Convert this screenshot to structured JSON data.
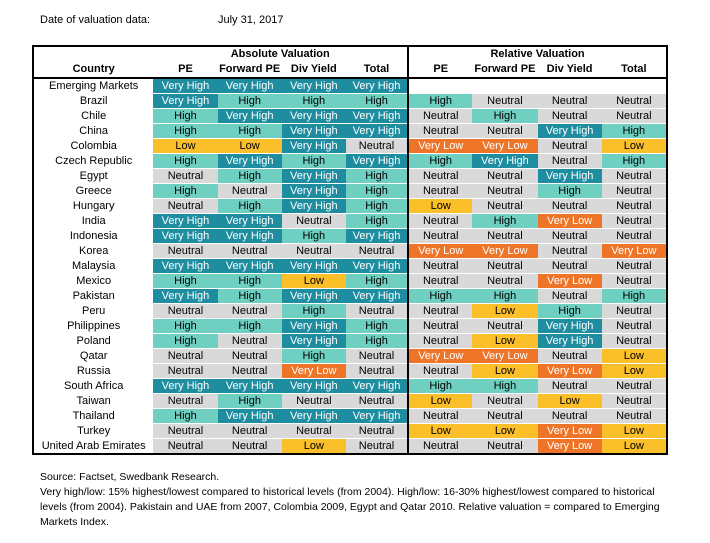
{
  "meta": {
    "label": "Date of valuation data:",
    "value": "July 31, 2017"
  },
  "headers": {
    "abs_group": "Absolute Valuation",
    "rel_group": "Relative Valuation",
    "country": "Country",
    "abs_cols": [
      "PE",
      "Forward PE",
      "Div Yield",
      "Total"
    ],
    "rel_cols": [
      "PE",
      "Forward PE",
      "Div Yield",
      "Total"
    ]
  },
  "rows": [
    {
      "country": "Emerging Markets",
      "abs": [
        "Very High",
        "Very High",
        "Very High",
        "Very High"
      ],
      "rel": [
        "",
        "",
        "",
        ""
      ]
    },
    {
      "country": "Brazil",
      "abs": [
        "Very High",
        "High",
        "High",
        "High"
      ],
      "rel": [
        "High",
        "Neutral",
        "Neutral",
        "Neutral"
      ]
    },
    {
      "country": "Chile",
      "abs": [
        "High",
        "Very High",
        "Very High",
        "Very High"
      ],
      "rel": [
        "Neutral",
        "High",
        "Neutral",
        "Neutral"
      ]
    },
    {
      "country": "China",
      "abs": [
        "High",
        "High",
        "Very High",
        "Very High"
      ],
      "rel": [
        "Neutral",
        "Neutral",
        "Very High",
        "High"
      ]
    },
    {
      "country": "Colombia",
      "abs": [
        "Low",
        "Low",
        "Very High",
        "Neutral"
      ],
      "rel": [
        "Very Low",
        "Very Low",
        "Neutral",
        "Low"
      ]
    },
    {
      "country": "Czech Republic",
      "abs": [
        "High",
        "Very High",
        "High",
        "Very High"
      ],
      "rel": [
        "High",
        "Very High",
        "Neutral",
        "High"
      ]
    },
    {
      "country": "Egypt",
      "abs": [
        "Neutral",
        "High",
        "Very High",
        "High"
      ],
      "rel": [
        "Neutral",
        "Neutral",
        "Very High",
        "Neutral"
      ]
    },
    {
      "country": "Greece",
      "abs": [
        "High",
        "Neutral",
        "Very High",
        "High"
      ],
      "rel": [
        "Neutral",
        "Neutral",
        "High",
        "Neutral"
      ]
    },
    {
      "country": "Hungary",
      "abs": [
        "Neutral",
        "High",
        "Very High",
        "High"
      ],
      "rel": [
        "Low",
        "Neutral",
        "Neutral",
        "Neutral"
      ]
    },
    {
      "country": "India",
      "abs": [
        "Very High",
        "Very High",
        "Neutral",
        "High"
      ],
      "rel": [
        "Neutral",
        "High",
        "Very Low",
        "Neutral"
      ]
    },
    {
      "country": "Indonesia",
      "abs": [
        "Very High",
        "Very High",
        "High",
        "Very High"
      ],
      "rel": [
        "Neutral",
        "Neutral",
        "Neutral",
        "Neutral"
      ]
    },
    {
      "country": "Korea",
      "abs": [
        "Neutral",
        "Neutral",
        "Neutral",
        "Neutral"
      ],
      "rel": [
        "Very Low",
        "Very Low",
        "Neutral",
        "Very Low"
      ]
    },
    {
      "country": "Malaysia",
      "abs": [
        "Very High",
        "Very High",
        "Very High",
        "Very High"
      ],
      "rel": [
        "Neutral",
        "Neutral",
        "Neutral",
        "Neutral"
      ]
    },
    {
      "country": "Mexico",
      "abs": [
        "High",
        "High",
        "Low",
        "High"
      ],
      "rel": [
        "Neutral",
        "Neutral",
        "Very Low",
        "Neutral"
      ]
    },
    {
      "country": "Pakistan",
      "abs": [
        "Very High",
        "High",
        "Very High",
        "Very High"
      ],
      "rel": [
        "High",
        "High",
        "Neutral",
        "High"
      ]
    },
    {
      "country": "Peru",
      "abs": [
        "Neutral",
        "Neutral",
        "High",
        "Neutral"
      ],
      "rel": [
        "Neutral",
        "Low",
        "High",
        "Neutral"
      ]
    },
    {
      "country": "Philippines",
      "abs": [
        "High",
        "High",
        "Very High",
        "High"
      ],
      "rel": [
        "Neutral",
        "Neutral",
        "Very High",
        "Neutral"
      ]
    },
    {
      "country": "Poland",
      "abs": [
        "High",
        "Neutral",
        "Very High",
        "High"
      ],
      "rel": [
        "Neutral",
        "Low",
        "Very High",
        "Neutral"
      ]
    },
    {
      "country": "Qatar",
      "abs": [
        "Neutral",
        "Neutral",
        "High",
        "Neutral"
      ],
      "rel": [
        "Very Low",
        "Very Low",
        "Neutral",
        "Low"
      ]
    },
    {
      "country": "Russia",
      "abs": [
        "Neutral",
        "Neutral",
        "Very Low",
        "Neutral"
      ],
      "rel": [
        "Neutral",
        "Low",
        "Very Low",
        "Low"
      ]
    },
    {
      "country": "South Africa",
      "abs": [
        "Very High",
        "Very High",
        "Very High",
        "Very High"
      ],
      "rel": [
        "High",
        "High",
        "Neutral",
        "Neutral"
      ]
    },
    {
      "country": "Taiwan",
      "abs": [
        "Neutral",
        "High",
        "Neutral",
        "Neutral"
      ],
      "rel": [
        "Low",
        "Neutral",
        "Low",
        "Neutral"
      ]
    },
    {
      "country": "Thailand",
      "abs": [
        "High",
        "Very High",
        "Very High",
        "Very High"
      ],
      "rel": [
        "Neutral",
        "Neutral",
        "Neutral",
        "Neutral"
      ]
    },
    {
      "country": "Turkey",
      "abs": [
        "Neutral",
        "Neutral",
        "Neutral",
        "Neutral"
      ],
      "rel": [
        "Low",
        "Low",
        "Very Low",
        "Low"
      ]
    },
    {
      "country": "United Arab Emirates",
      "abs": [
        "Neutral",
        "Neutral",
        "Low",
        "Neutral"
      ],
      "rel": [
        "Neutral",
        "Neutral",
        "Very Low",
        "Low"
      ]
    }
  ],
  "colors": {
    "Very High": "#1f8da0",
    "High": "#6fd0c2",
    "Neutral": "#d9d9d9",
    "Low": "#fbbf2a",
    "Very Low": "#ee7428"
  },
  "footnotes": {
    "source": "Source: Factset, Swedbank Research.",
    "definition": "Very high/low: 15% highest/lowest compared to historical levels (from 2004). High/low: 16-30% highest/lowest compared to historical levels (from 2004). Pakistain and UAE from 2007, Colombia 2009, Egypt and Qatar 2010. Relative valuation = compared to Emerging Markets Index."
  }
}
